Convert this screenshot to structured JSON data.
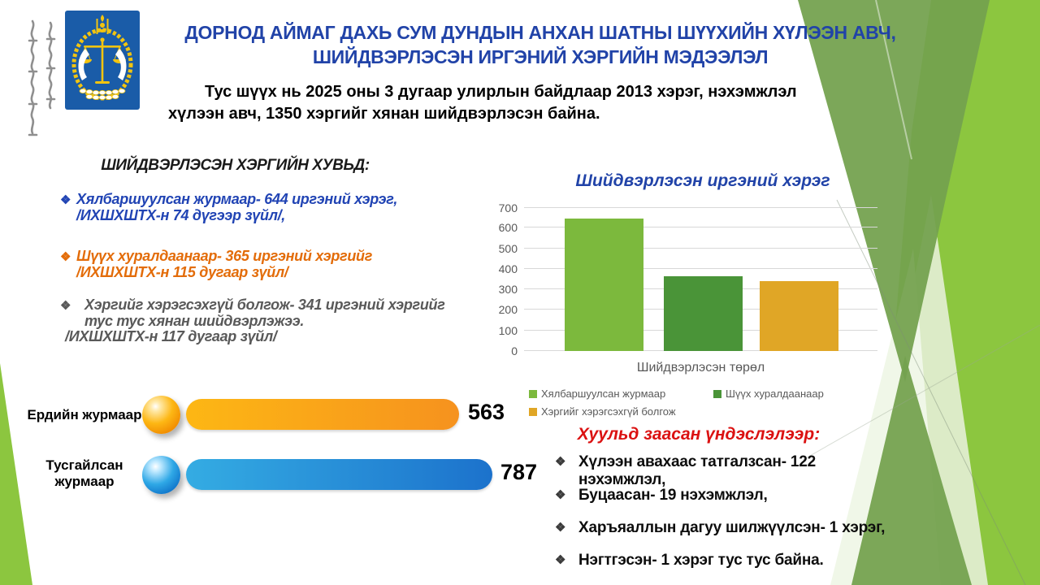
{
  "header": {
    "title_lines": [
      "ДОРНОД АЙМАГ ДАХЬ СУМ ДУНДЫН АНХАН ШАТНЫ ШҮҮХИЙН ХҮЛЭЭН АВЧ,",
      "ШИЙДВЭРЛЭСЭН ИРГЭНИЙ ХЭРГИЙН МЭДЭЭЛЭЛ"
    ],
    "intro_lines": [
      "Тус шүүх нь 2025 оны 3 дугаар улирлын байдлаар 2013 хэрэг, нэхэмжлэл",
      "хүлээн авч, 1350 хэргийг хянан шийдвэрлэсэн байна."
    ]
  },
  "bullet_char": "❖",
  "left_panel": {
    "heading": "ШИЙДВЭРЛЭСЭН ХЭРГИЙН ХУВЬД:",
    "bullets": [
      {
        "text": "Хялбаршуулсан журмаар- 644 иргэний хэрэг,",
        "note": "/ИХШХШТХ-н 74 дүгээр зүйл/,",
        "color": "#2144B4"
      },
      {
        "text": "Шүүх хуралдаанаар- 365 иргэний хэргийг",
        "note": "/ИХШХШТХ-н 115 дугаар зүйл/",
        "color": "#E36C09"
      },
      {
        "text": "Хэргийг хэрэгсэхгүй болгож- 341 иргэний хэргийг тус тус хянан шийдвэрлэжээ.",
        "note": "/ИХШХШТХ-н 117 дугаар зүйл/",
        "color": "#595959"
      }
    ]
  },
  "chart_data": [
    {
      "type": "bar",
      "title": "Шийдвэрлэсэн иргэний хэрэг",
      "xlabel": "Шийдвэрлэсэн  төрөл",
      "ylabel": "",
      "ylim": [
        0,
        700
      ],
      "ytick_step": 100,
      "grid": true,
      "legend_position": "bottom",
      "categories": [
        "Шийдвэрлэсэн төрөл"
      ],
      "series": [
        {
          "name": "Хялбаршуулсан  журмаар",
          "values": [
            644
          ],
          "color": "#7CB93D"
        },
        {
          "name": "Шүүх хуралдаанаар",
          "values": [
            365
          ],
          "color": "#4A9438"
        },
        {
          "name": "Хэргийг  хэрэгсэхгүй болгож",
          "values": [
            341
          ],
          "color": "#E0A626"
        }
      ]
    },
    {
      "type": "bar",
      "orientation": "horizontal",
      "style": "infographic-pills",
      "categories": [
        "Ердийн журмаар",
        "Тусгайлсан журмаар"
      ],
      "values": [
        563,
        787
      ],
      "bar_styles": [
        {
          "sphere": "orange",
          "gradient": [
            "#FDB714",
            "#F6921E"
          ]
        },
        {
          "sphere": "blue",
          "gradient": [
            "#34ACE3",
            "#1C72CC"
          ]
        }
      ]
    }
  ],
  "right_panel": {
    "heading": "Хуульд заасан үндэслэлээр:",
    "items": [
      "Хүлээн авахаас татгалзсан- 122 нэхэмжлэл,",
      "Буцаасан- 19 нэхэмжлэл,",
      "Харъяаллын дагуу шилжүүлсэн- 1 хэрэг,",
      "Нэгтгэсэн- 1 хэрэг тус тус байна."
    ]
  },
  "colors": {
    "title_blue": "#2143A8",
    "heading_red": "#DB1212",
    "decor_bright_green": "#8CC63F",
    "decor_sage_green": "#74A24F",
    "decor_pale_green": "#DCEBC7",
    "logo_blue": "#1A5CA8",
    "logo_gold": "#F2C410"
  }
}
